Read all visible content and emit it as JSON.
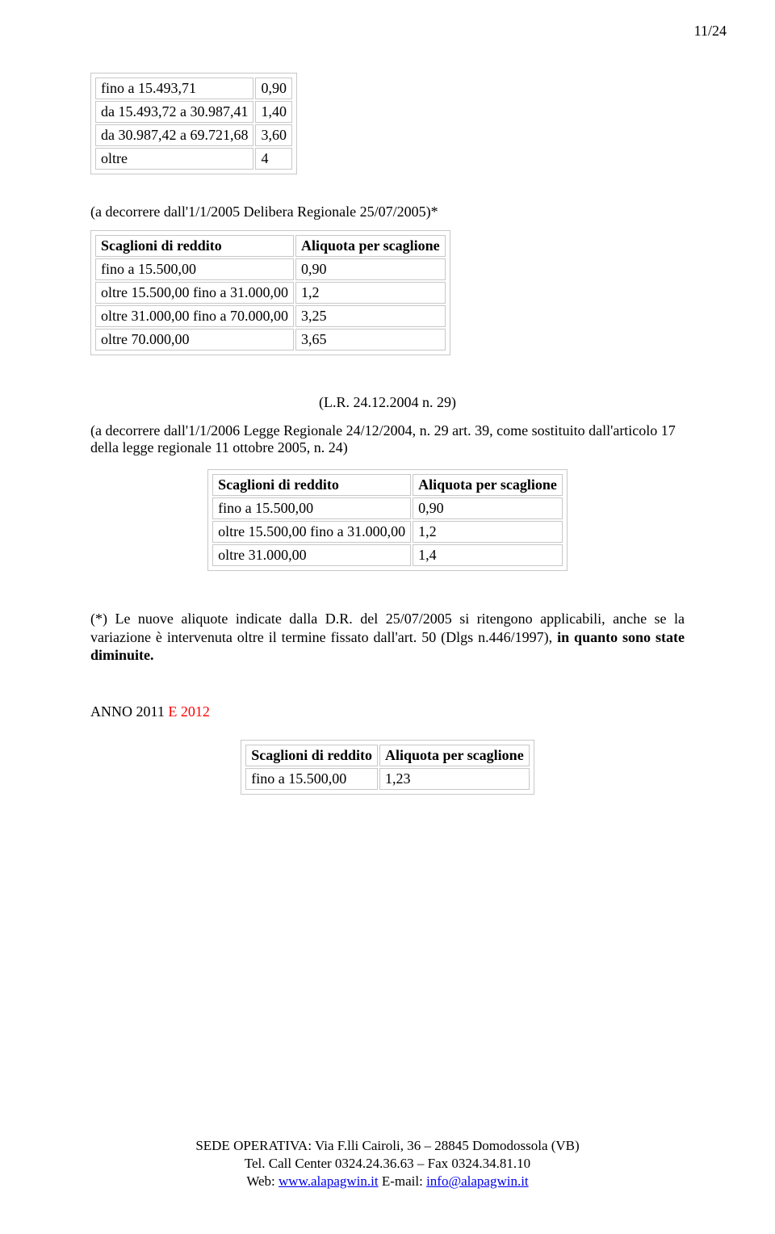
{
  "page_num": "11/24",
  "table1": {
    "rows": [
      [
        "fino a 15.493,71",
        "0,90"
      ],
      [
        "da 15.493,72 a 30.987,41",
        "1,40"
      ],
      [
        "da 30.987,42 a 69.721,68",
        "3,60"
      ],
      [
        "oltre",
        "4"
      ]
    ]
  },
  "intro_text": "(a decorrere dall'1/1/2005 Delibera Regionale 25/07/2005)*",
  "table2": {
    "header": [
      "Scaglioni di reddito",
      "Aliquota per scaglione"
    ],
    "rows": [
      [
        "fino a 15.500,00",
        "0,90"
      ],
      [
        "oltre 15.500,00 fino a 31.000,00",
        "1,2"
      ],
      [
        "oltre 31.000,00 fino a 70.000,00",
        "3,25"
      ],
      [
        "oltre 70.000,00",
        "3,65"
      ]
    ]
  },
  "law_ref": "(L.R. 24.12.2004 n. 29)",
  "decorrere2": "(a decorrere dall'1/1/2006 Legge Regionale 24/12/2004, n. 29 art. 39, come sostituito dall'articolo 17 della legge regionale 11 ottobre 2005, n. 24)",
  "table3": {
    "header": [
      "Scaglioni di reddito",
      "Aliquota per scaglione"
    ],
    "rows": [
      [
        "fino a 15.500,00",
        "0,90"
      ],
      [
        "oltre 15.500,00 fino a 31.000,00",
        "1,2"
      ],
      [
        "oltre 31.000,00",
        "1,4"
      ]
    ]
  },
  "para_star_prefix": "(*) Le nuove aliquote indicate dalla D.R. del 25/07/2005 si ritengono applicabili, anche se la variazione è intervenuta oltre il termine fissato dall'art. 50 (Dlgs n.446/1997), ",
  "para_star_bold": "in quanto sono state diminuite.",
  "year_black": "ANNO 2011 ",
  "year_red": "E 2012",
  "table4": {
    "header": [
      "Scaglioni di reddito",
      "Aliquota per scaglione"
    ],
    "rows": [
      [
        "fino a 15.500,00",
        "1,23"
      ]
    ]
  },
  "footer": {
    "line1": "SEDE OPERATIVA: Via F.lli Cairoli, 36 – 28845 Domodossola (VB)",
    "line2": "Tel. Call Center 0324.24.36.63 – Fax 0324.34.81.10",
    "line3_a": "Web: ",
    "link1": "www.alapagwin.it",
    "line3_b": " E-mail: ",
    "link2": "info@alapagwin.it"
  }
}
